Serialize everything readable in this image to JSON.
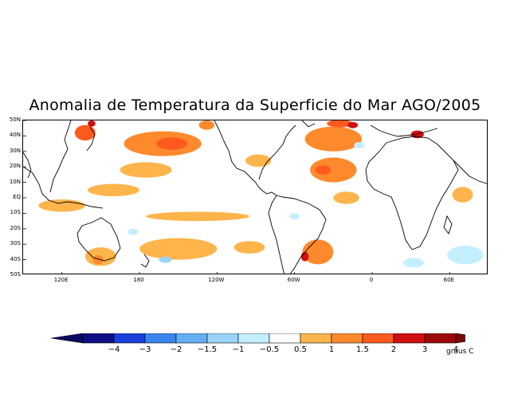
{
  "title": "Anomalia de Temperatura da Superficie do Mar AGO/2005",
  "map": {
    "lat_labels": [
      "50N",
      "40N",
      "30N",
      "20N",
      "10N",
      "EQ",
      "10S",
      "20S",
      "30S",
      "40S",
      "50S"
    ],
    "lat_values": [
      50,
      40,
      30,
      20,
      10,
      0,
      -10,
      -20,
      -30,
      -40,
      -50
    ],
    "lon_labels": [
      "120E",
      "180",
      "120W",
      "60W",
      "0",
      "60E"
    ],
    "lon_values": [
      120,
      180,
      240,
      300,
      360,
      420
    ],
    "lon_range": [
      90,
      450
    ],
    "lat_range": [
      -50,
      50
    ],
    "anomaly_regions": [
      {
        "name": "north-pacific-warm-band",
        "lon": 198,
        "lat": 35,
        "rlon": 30,
        "rlat": 8,
        "value": 1
      },
      {
        "name": "north-pacific-core",
        "lon": 205,
        "lat": 35,
        "rlon": 12,
        "rlat": 4,
        "value": 1.5
      },
      {
        "name": "japan-sea-warm",
        "lon": 138,
        "lat": 42,
        "rlon": 8,
        "rlat": 5,
        "value": 1.5
      },
      {
        "name": "kuroshio-core",
        "lon": 143,
        "lat": 48,
        "rlon": 3,
        "rlat": 2,
        "value": 2
      },
      {
        "name": "northeast-pacific-warm",
        "lon": 232,
        "lat": 47,
        "rlon": 6,
        "rlat": 3,
        "value": 1
      },
      {
        "name": "subtropical-pacific-warm",
        "lon": 185,
        "lat": 18,
        "rlon": 20,
        "rlat": 5,
        "value": 0.5
      },
      {
        "name": "western-pacific-warm",
        "lon": 160,
        "lat": 5,
        "rlon": 20,
        "rlat": 4,
        "value": 0.5
      },
      {
        "name": "indonesia-warm",
        "lon": 120,
        "lat": -5,
        "rlon": 18,
        "rlat": 4,
        "value": 0.5
      },
      {
        "name": "south-pacific-band",
        "lon": 225,
        "lat": -12,
        "rlon": 40,
        "rlat": 3,
        "value": 0.5
      },
      {
        "name": "south-pacific-warm",
        "lon": 210,
        "lat": -33,
        "rlon": 30,
        "rlat": 7,
        "value": 0.5
      },
      {
        "name": "tasman-warm",
        "lon": 150,
        "lat": -38,
        "rlon": 12,
        "rlat": 6,
        "value": 0.5
      },
      {
        "name": "tasman-core",
        "lon": 148,
        "lat": -40,
        "rlon": 4,
        "rlat": 3,
        "value": 1
      },
      {
        "name": "gulf-of-mexico-warm",
        "lon": 272,
        "lat": 24,
        "rlon": 10,
        "rlat": 4,
        "value": 0.5
      },
      {
        "name": "north-atlantic-warm",
        "lon": 330,
        "lat": 38,
        "rlon": 22,
        "rlat": 8,
        "value": 1
      },
      {
        "name": "north-atlantic-core",
        "lon": 335,
        "lat": 48,
        "rlon": 10,
        "rlat": 2.5,
        "value": 1.5
      },
      {
        "name": "north-atlantic-peak",
        "lon": 345,
        "lat": 47,
        "rlon": 4,
        "rlat": 2,
        "value": 2
      },
      {
        "name": "tropical-atlantic-warm",
        "lon": 330,
        "lat": 18,
        "rlon": 18,
        "rlat": 8,
        "value": 1
      },
      {
        "name": "tropical-atlantic-core",
        "lon": 322,
        "lat": 18,
        "rlon": 6,
        "rlat": 3,
        "value": 1.5
      },
      {
        "name": "atlantic-equatorial-warm",
        "lon": 340,
        "lat": 0,
        "rlon": 10,
        "rlat": 4,
        "value": 0.5
      },
      {
        "name": "south-atlantic-warm",
        "lon": 318,
        "lat": -35,
        "rlon": 12,
        "rlat": 8,
        "value": 1
      },
      {
        "name": "south-atlantic-core",
        "lon": 308,
        "lat": -38,
        "rlon": 3,
        "rlat": 3,
        "value": 2
      },
      {
        "name": "mediterranean-warm",
        "lon": 395,
        "lat": 41,
        "rlon": 5,
        "rlat": 2.5,
        "value": 2
      },
      {
        "name": "indian-ocean-warm",
        "lon": 430,
        "lat": 2,
        "rlon": 8,
        "rlat": 5,
        "value": 0.5
      },
      {
        "name": "southeast-pacific-warm",
        "lon": 265,
        "lat": -32,
        "rlon": 12,
        "rlat": 4,
        "value": 0.5
      },
      {
        "name": "central-pacific-cool",
        "lon": 200,
        "lat": -40,
        "rlon": 5,
        "rlat": 2,
        "value": -1
      },
      {
        "name": "north-pacific-cool",
        "lon": 175,
        "lat": -22,
        "rlon": 4,
        "rlat": 2,
        "value": -0.5
      },
      {
        "name": "indian-ocean-cool",
        "lon": 432,
        "lat": -37,
        "rlon": 14,
        "rlat": 6,
        "value": -0.5
      },
      {
        "name": "southwest-indian-cool",
        "lon": 392,
        "lat": -42,
        "rlon": 8,
        "rlat": 3,
        "value": -0.5
      },
      {
        "name": "equatorial-pacific-cool",
        "lon": 300,
        "lat": -12,
        "rlon": 4,
        "rlat": 2,
        "value": -0.5
      },
      {
        "name": "north-atlantic-cool",
        "lon": 350,
        "lat": 34,
        "rlon": 4,
        "rlat": 2,
        "value": -0.5
      }
    ]
  },
  "colorbar": {
    "labels": [
      "-4",
      "-3",
      "-2",
      "-1.5",
      "-1",
      "-0.5",
      "0.5",
      "1",
      "1.5",
      "2",
      "3",
      "4"
    ],
    "colors": [
      "#0d0d86",
      "#1a3fd8",
      "#3a86ef",
      "#64aef4",
      "#9ad4fa",
      "#c3efff",
      "#ffffff",
      "#ffb54c",
      "#ff8a2d",
      "#ff5a1e",
      "#d20f0f",
      "#9c0909"
    ],
    "low_arrow_color": "#0a0a60",
    "high_arrow_color": "#7a0707",
    "units": "graus C"
  }
}
